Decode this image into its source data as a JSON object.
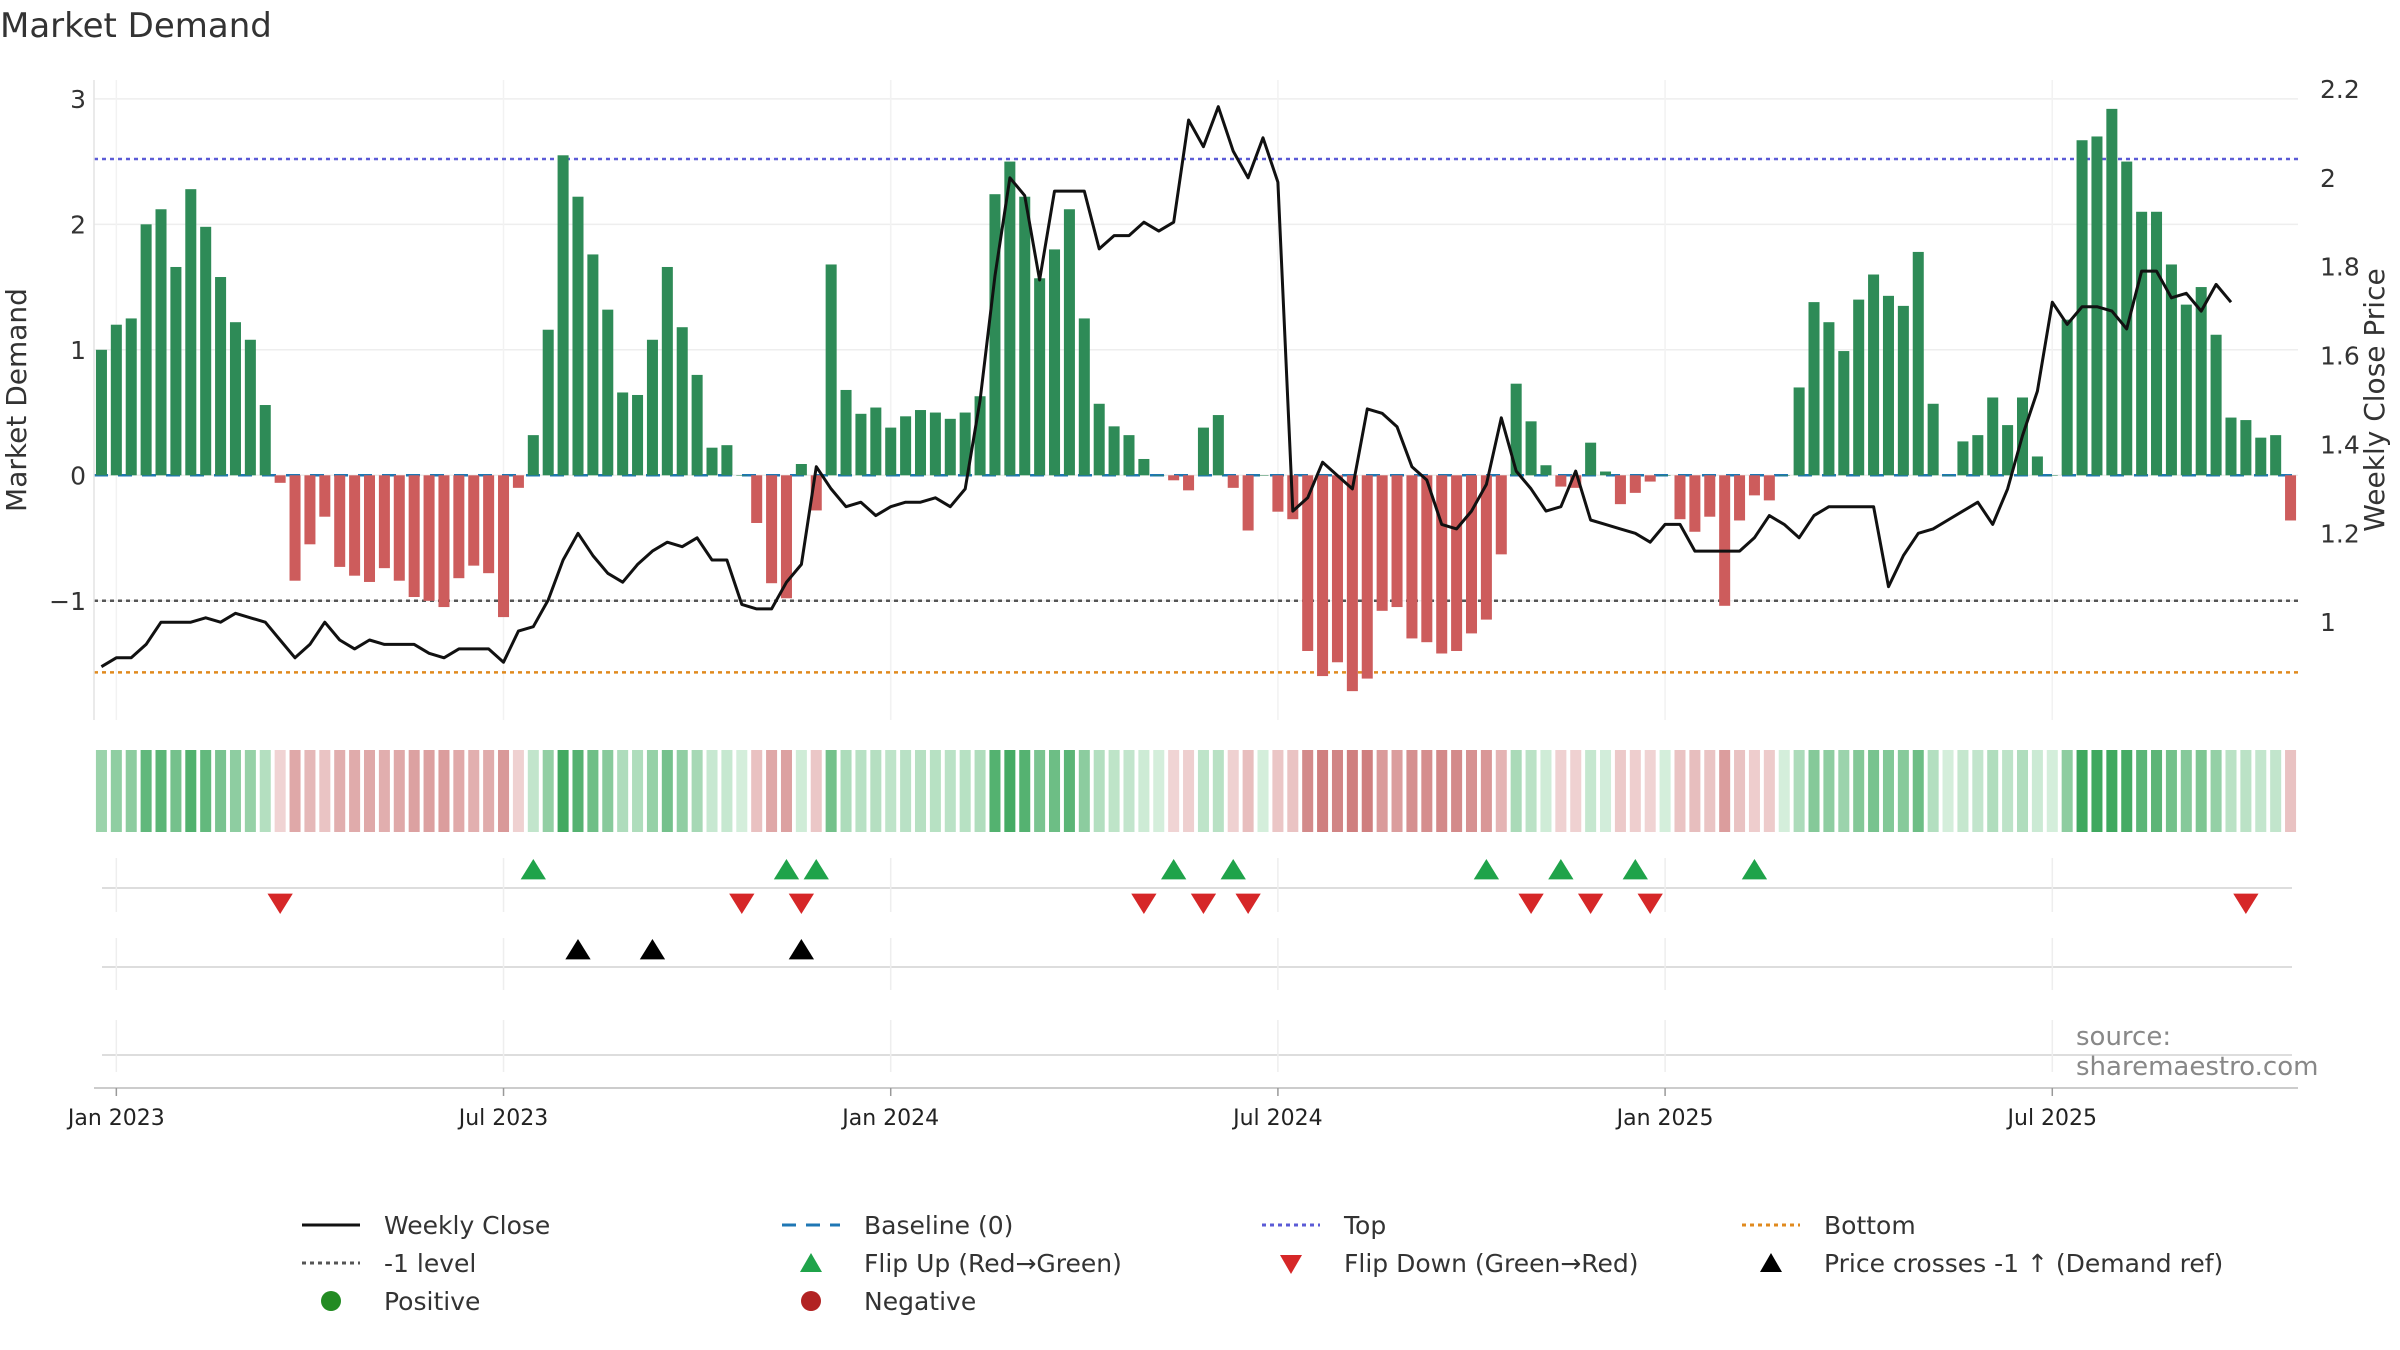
{
  "title": "Market Demand",
  "source": "source: sharemaestro.com",
  "colors": {
    "positive": "#2e8b57",
    "negative": "#cd5c5c",
    "close": "#111111",
    "baseline": "#1f77b4",
    "top": "#5b5bd6",
    "level": "#555555",
    "bottom": "#e08a1e",
    "flip_up": "#1fa34a",
    "flip_down": "#d62728",
    "cross": "#000000"
  },
  "legend": {
    "weekly_close": "Weekly Close",
    "baseline": "Baseline (0)",
    "top": "Top",
    "bottom": "Bottom",
    "level": "-1 level",
    "flip_up": "Flip Up (Red→Green)",
    "flip_down": "Flip Down (Green→Red)",
    "cross": "Price crosses -1 ↑ (Demand ref)",
    "positive": "Positive",
    "negative": "Negative"
  },
  "chart_data": {
    "type": "bar",
    "title": "Market Demand",
    "xlabel": "",
    "ylabel": "Market Demand",
    "y2label": "Weekly Close Price",
    "ylim": [
      -1.95,
      3.15
    ],
    "y2lim": [
      0.78,
      2.22
    ],
    "yticks": [
      3,
      2,
      1,
      0,
      -1
    ],
    "ytick_labels": [
      "3",
      "2",
      "1",
      "0",
      "−1"
    ],
    "y2ticks": [
      2.2,
      2.0,
      1.8,
      1.6,
      1.4,
      1.2,
      1.0
    ],
    "y2tick_labels": [
      "2.2",
      "2",
      "1.8",
      "1.6",
      "1.4",
      "1.2",
      "1"
    ],
    "x_ticks": [
      1.5,
      27.5,
      53.5,
      79.5,
      105.5,
      131.5
    ],
    "x_tick_labels": [
      "Jan 2023",
      "Jul 2023",
      "Jan 2024",
      "Jul 2024",
      "Jan 2025",
      "Jul 2025"
    ],
    "reference_lines": {
      "top": 2.52,
      "level": -1.0,
      "bottom": -1.57,
      "baseline": 0
    },
    "series": [
      {
        "name": "Market Demand",
        "axis": "left",
        "values": [
          1.0,
          1.2,
          1.25,
          2.0,
          2.12,
          1.66,
          2.28,
          1.98,
          1.58,
          1.22,
          1.08,
          0.56,
          -0.06,
          -0.84,
          -0.55,
          -0.33,
          -0.73,
          -0.8,
          -0.85,
          -0.74,
          -0.84,
          -0.97,
          -1.0,
          -1.05,
          -0.82,
          -0.72,
          -0.78,
          -1.13,
          -0.1,
          0.32,
          1.16,
          2.55,
          2.22,
          1.76,
          1.32,
          0.66,
          0.64,
          1.08,
          1.66,
          1.18,
          0.8,
          0.22,
          0.24,
          0.0,
          -0.38,
          -0.86,
          -0.98,
          0.09,
          -0.28,
          1.68,
          0.68,
          0.49,
          0.54,
          0.38,
          0.47,
          0.52,
          0.5,
          0.45,
          0.5,
          0.63,
          2.24,
          2.5,
          2.22,
          1.57,
          1.8,
          2.12,
          1.25,
          0.57,
          0.39,
          0.32,
          0.13,
          0.0,
          -0.04,
          -0.12,
          0.38,
          0.48,
          -0.1,
          -0.44,
          0.0,
          -0.29,
          -0.35,
          -1.4,
          -1.6,
          -1.49,
          -1.72,
          -1.62,
          -1.08,
          -1.05,
          -1.3,
          -1.33,
          -1.42,
          -1.4,
          -1.26,
          -1.15,
          -0.63,
          0.73,
          0.43,
          0.08,
          -0.09,
          -0.1,
          0.26,
          0.03,
          -0.23,
          -0.14,
          -0.05,
          0.0,
          -0.35,
          -0.45,
          -0.33,
          -1.04,
          -0.36,
          -0.16,
          -0.2,
          0.0,
          0.7,
          1.38,
          1.22,
          0.99,
          1.4,
          1.6,
          1.43,
          1.35,
          1.78,
          0.57,
          0.0,
          0.27,
          0.32,
          0.62,
          0.4,
          0.62,
          0.15,
          0.0,
          1.24,
          2.67,
          2.7,
          2.92,
          2.5,
          2.1,
          2.1,
          1.68,
          1.36,
          1.5,
          1.12,
          0.46,
          0.44,
          0.3,
          0.32,
          -0.36
        ]
      },
      {
        "name": "Weekly Close",
        "axis": "right",
        "values": [
          0.9,
          0.92,
          0.92,
          0.95,
          1.0,
          1.0,
          1.0,
          1.01,
          1.0,
          1.02,
          1.01,
          1.0,
          0.96,
          0.92,
          0.95,
          1.0,
          0.96,
          0.94,
          0.96,
          0.95,
          0.95,
          0.95,
          0.93,
          0.92,
          0.94,
          0.94,
          0.94,
          0.91,
          0.98,
          0.99,
          1.05,
          1.14,
          1.2,
          1.15,
          1.11,
          1.09,
          1.13,
          1.16,
          1.18,
          1.17,
          1.19,
          1.14,
          1.14,
          1.04,
          1.03,
          1.03,
          1.09,
          1.13,
          1.35,
          1.3,
          1.26,
          1.27,
          1.24,
          1.26,
          1.27,
          1.27,
          1.28,
          1.26,
          1.3,
          1.5,
          1.78,
          2.0,
          1.96,
          1.77,
          1.97,
          1.97,
          1.97,
          1.84,
          1.87,
          1.87,
          1.9,
          1.88,
          1.9,
          2.13,
          2.07,
          2.16,
          2.06,
          2.0,
          2.09,
          1.99,
          1.25,
          1.28,
          1.36,
          1.33,
          1.3,
          1.48,
          1.47,
          1.44,
          1.35,
          1.32,
          1.22,
          1.21,
          1.25,
          1.31,
          1.46,
          1.34,
          1.3,
          1.25,
          1.26,
          1.34,
          1.23,
          1.22,
          1.21,
          1.2,
          1.18,
          1.22,
          1.22,
          1.16,
          1.16,
          1.16,
          1.16,
          1.19,
          1.24,
          1.22,
          1.19,
          1.24,
          1.26,
          1.26,
          1.26,
          1.26,
          1.08,
          1.15,
          1.2,
          1.21,
          1.23,
          1.25,
          1.27,
          1.22,
          1.3,
          1.42,
          1.52,
          1.72,
          1.67,
          1.71,
          1.71,
          1.7,
          1.66,
          1.79,
          1.79,
          1.73,
          1.74,
          1.7,
          1.76,
          1.72
        ]
      }
    ],
    "heat_strip": "Weekly demand intensity (green = positive, red = negative)",
    "flip_up_weeks": [
      29,
      46,
      48,
      72,
      76,
      93,
      98,
      103,
      111
    ],
    "flip_down_weeks": [
      12,
      43,
      47,
      70,
      74,
      77,
      96,
      100,
      104,
      144
    ],
    "cross_weeks": [
      32,
      37,
      47
    ]
  }
}
